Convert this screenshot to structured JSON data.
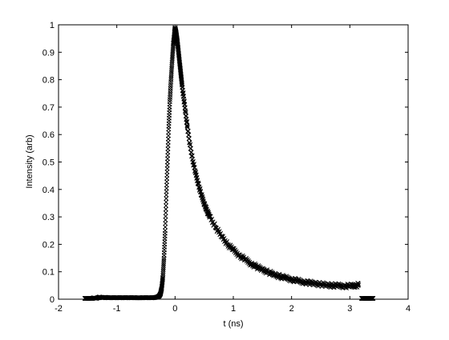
{
  "chart_data": {
    "type": "scatter",
    "title": "",
    "xlabel": "t (ns)",
    "ylabel": "Intensity (arb)",
    "xlim": [
      -2,
      4
    ],
    "ylim": [
      0,
      1
    ],
    "xticks": [
      "-2",
      "-1",
      "0",
      "1",
      "2",
      "3",
      "4"
    ],
    "yticks": [
      "0",
      "0.1",
      "0.2",
      "0.3",
      "0.4",
      "0.5",
      "0.6",
      "0.7",
      "0.8",
      "0.9",
      "1"
    ],
    "grid": false,
    "legend": "none",
    "marker": "x",
    "color": "#000000",
    "series": [
      {
        "points": [
          [
            -1.55,
            0.0
          ],
          [
            -1.5,
            0.0
          ],
          [
            -1.45,
            0.0
          ],
          [
            -1.4,
            0.005
          ],
          [
            -1.35,
            0.003
          ],
          [
            -1.3,
            0.008
          ],
          [
            -1.25,
            0.005
          ],
          [
            -1.2,
            0.007
          ],
          [
            -1.15,
            0.005
          ],
          [
            -1.1,
            0.006
          ],
          [
            -1.05,
            0.005
          ],
          [
            -1.0,
            0.006
          ],
          [
            -0.95,
            0.005
          ],
          [
            -0.9,
            0.006
          ],
          [
            -0.85,
            0.005
          ],
          [
            -0.8,
            0.006
          ],
          [
            -0.75,
            0.005
          ],
          [
            -0.7,
            0.006
          ],
          [
            -0.65,
            0.005
          ],
          [
            -0.6,
            0.005
          ],
          [
            -0.55,
            0.006
          ],
          [
            -0.5,
            0.005
          ],
          [
            -0.45,
            0.006
          ],
          [
            -0.4,
            0.005
          ],
          [
            -0.35,
            0.006
          ],
          [
            -0.3,
            0.008
          ],
          [
            -0.27,
            0.012
          ],
          [
            -0.25,
            0.02
          ],
          [
            -0.23,
            0.04
          ],
          [
            -0.21,
            0.08
          ],
          [
            -0.19,
            0.15
          ],
          [
            -0.17,
            0.25
          ],
          [
            -0.15,
            0.38
          ],
          [
            -0.13,
            0.5
          ],
          [
            -0.11,
            0.62
          ],
          [
            -0.09,
            0.72
          ],
          [
            -0.07,
            0.8
          ],
          [
            -0.05,
            0.87
          ],
          [
            -0.03,
            0.93
          ],
          [
            -0.01,
            0.97
          ],
          [
            0.0,
            0.99
          ],
          [
            0.02,
            0.97
          ],
          [
            0.04,
            0.94
          ],
          [
            0.06,
            0.9
          ],
          [
            0.08,
            0.86
          ],
          [
            0.1,
            0.82
          ],
          [
            0.12,
            0.78
          ],
          [
            0.15,
            0.73
          ],
          [
            0.18,
            0.68
          ],
          [
            0.21,
            0.63
          ],
          [
            0.25,
            0.57
          ],
          [
            0.3,
            0.51
          ],
          [
            0.35,
            0.46
          ],
          [
            0.4,
            0.42
          ],
          [
            0.45,
            0.38
          ],
          [
            0.5,
            0.35
          ],
          [
            0.55,
            0.32
          ],
          [
            0.6,
            0.3
          ],
          [
            0.7,
            0.26
          ],
          [
            0.8,
            0.23
          ],
          [
            0.9,
            0.2
          ],
          [
            1.0,
            0.18
          ],
          [
            1.1,
            0.16
          ],
          [
            1.2,
            0.145
          ],
          [
            1.3,
            0.13
          ],
          [
            1.4,
            0.118
          ],
          [
            1.5,
            0.108
          ],
          [
            1.6,
            0.098
          ],
          [
            1.7,
            0.09
          ],
          [
            1.8,
            0.083
          ],
          [
            1.9,
            0.077
          ],
          [
            2.0,
            0.072
          ],
          [
            2.1,
            0.067
          ],
          [
            2.2,
            0.063
          ],
          [
            2.3,
            0.06
          ],
          [
            2.4,
            0.057
          ],
          [
            2.5,
            0.054
          ],
          [
            2.6,
            0.052
          ],
          [
            2.7,
            0.05
          ],
          [
            2.8,
            0.049
          ],
          [
            2.9,
            0.048
          ],
          [
            3.0,
            0.048
          ],
          [
            3.1,
            0.05
          ],
          [
            3.15,
            0.052
          ],
          [
            3.2,
            0.0
          ],
          [
            3.25,
            0.0
          ],
          [
            3.3,
            0.0
          ],
          [
            3.35,
            0.0
          ],
          [
            3.4,
            0.0
          ]
        ]
      }
    ]
  }
}
